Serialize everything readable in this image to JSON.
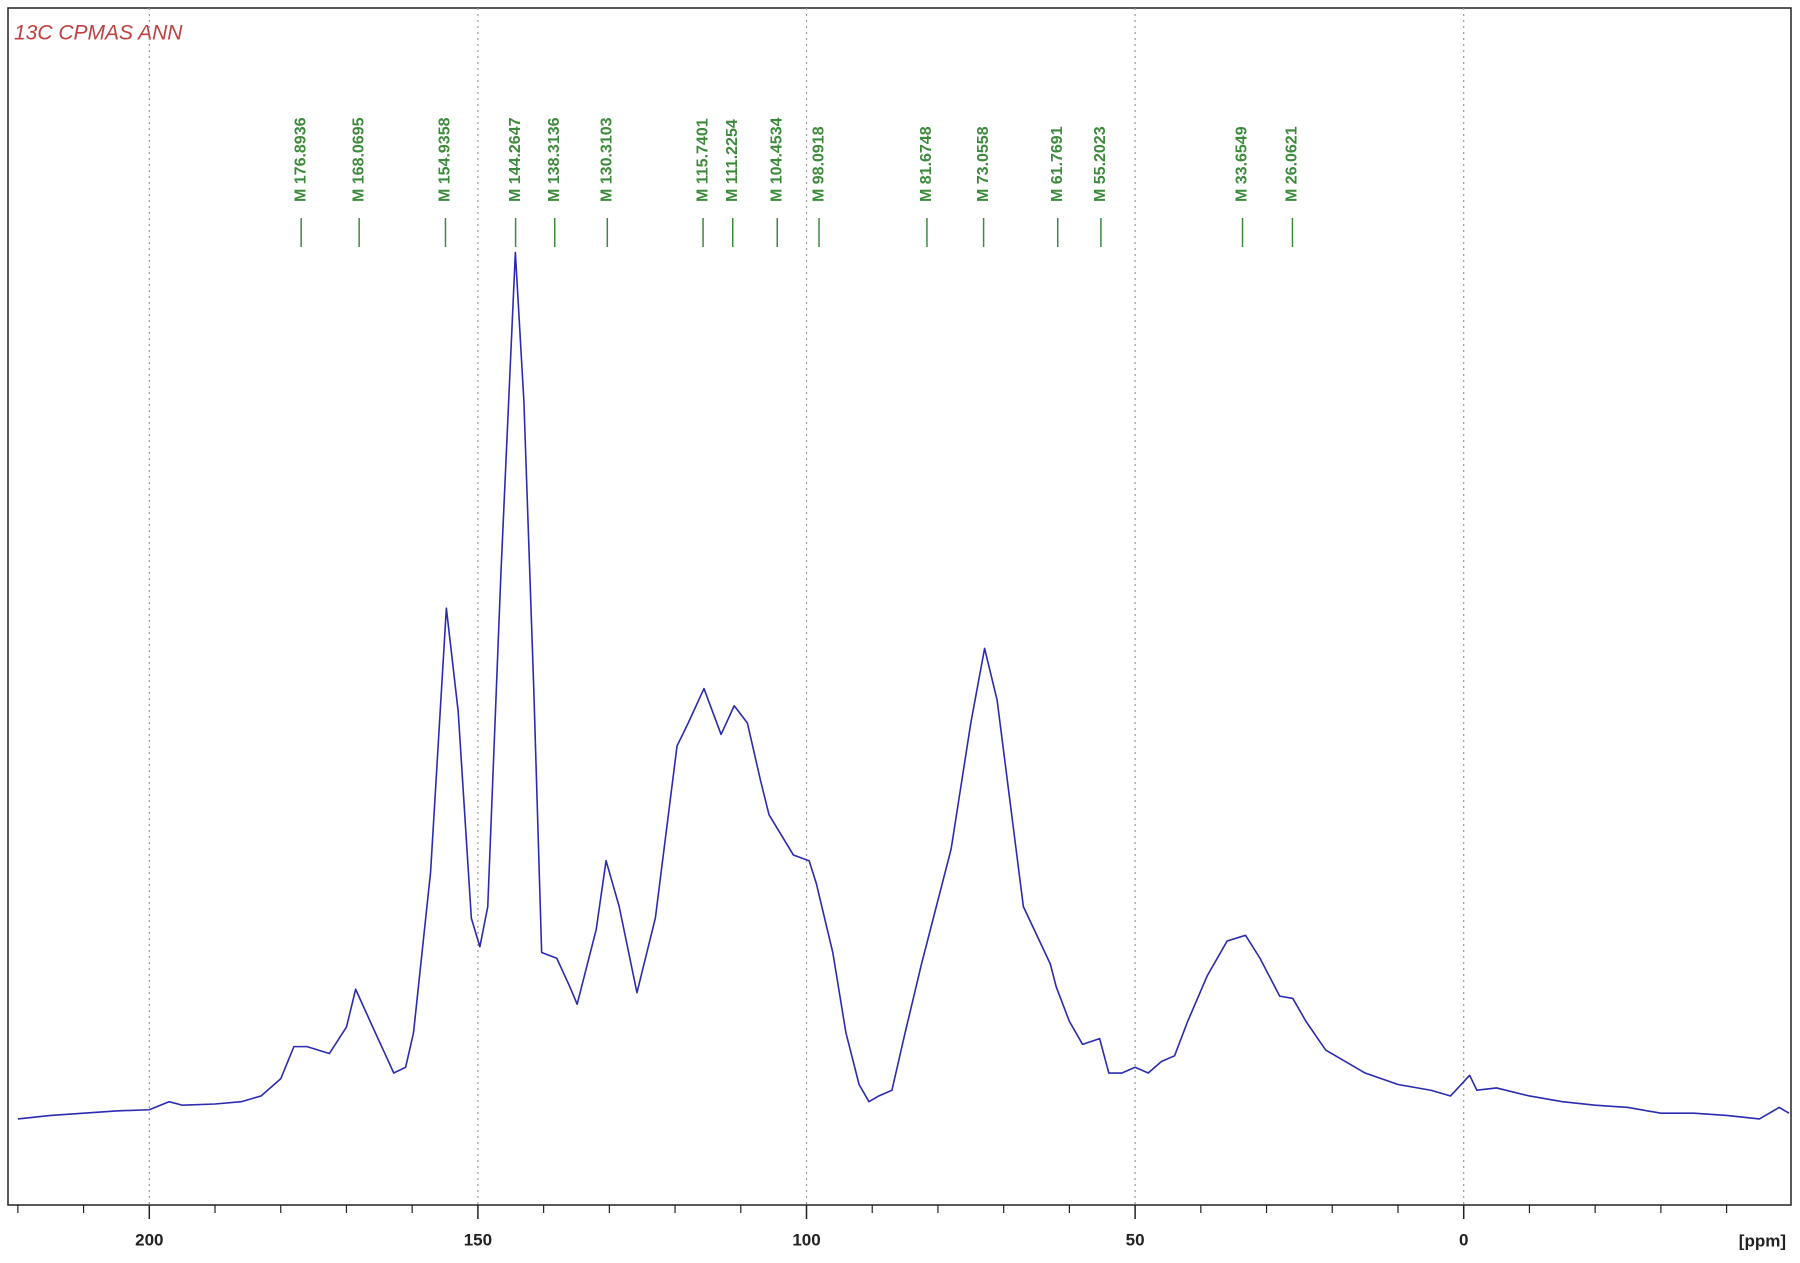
{
  "chart_data": {
    "type": "line",
    "title": "13C CPMAS ANN",
    "xlabel": "[ppm]",
    "color": "#2b2bb0",
    "xlim": [
      221.5,
      -49.8
    ],
    "xticks": [
      200,
      150,
      100,
      50,
      0
    ],
    "xminorticks": [
      220,
      210,
      190,
      180,
      170,
      160,
      140,
      130,
      120,
      110,
      90,
      80,
      70,
      60,
      40,
      30,
      20,
      10,
      -10,
      -20,
      -30,
      -40
    ],
    "grid": true,
    "ylim": [
      0,
      1043
    ],
    "x": [
      220,
      215,
      210,
      205,
      200,
      197,
      195,
      190,
      186,
      183,
      180,
      178,
      176,
      172.6,
      170,
      168.6,
      166,
      162.8,
      161,
      159.8,
      157.2,
      154.8,
      153,
      151,
      149.7,
      148.5,
      146.5,
      144.3,
      143,
      141.5,
      140.3,
      138,
      136,
      134.9,
      132,
      130.5,
      128.5,
      125.8,
      123,
      119.7,
      118,
      115.6,
      113,
      111,
      109,
      107,
      105.7,
      102,
      99.6,
      98.5,
      96,
      94,
      92,
      90.5,
      89,
      87,
      85,
      82.5,
      79.8,
      78,
      75,
      72.9,
      71,
      69,
      67,
      62.9,
      62,
      60,
      58,
      55.4,
      54,
      52,
      50,
      48,
      46,
      44,
      42,
      39,
      36,
      33.2,
      31,
      28,
      26,
      24,
      21,
      18,
      15,
      10,
      5,
      2,
      -0.9,
      -2,
      -5,
      -10,
      -15,
      -20,
      -25,
      -30,
      -35,
      -40,
      -45,
      -48,
      -49.5
    ],
    "values": [
      75,
      78,
      80,
      82,
      83,
      90,
      87,
      88,
      90,
      95,
      110,
      138,
      138,
      132,
      155,
      188,
      155,
      115,
      120,
      150,
      290,
      520,
      430,
      250,
      225,
      260,
      550,
      830,
      700,
      450,
      220,
      215,
      190,
      175,
      240,
      300,
      260,
      185,
      250,
      400,
      420,
      450,
      410,
      435,
      420,
      370,
      340,
      305,
      300,
      280,
      220,
      150,
      105,
      90,
      95,
      100,
      150,
      210,
      270,
      310,
      420,
      485,
      440,
      350,
      260,
      210,
      190,
      160,
      140,
      145,
      115,
      115,
      120,
      115,
      125,
      130,
      160,
      200,
      230,
      235,
      215,
      182,
      180,
      160,
      135,
      125,
      115,
      105,
      100,
      95,
      113,
      100,
      102,
      95,
      90,
      87,
      85,
      80,
      80,
      78,
      75,
      85,
      80
    ],
    "peak_markers": [
      {
        "value": 176.8936,
        "label": "M 176.8936"
      },
      {
        "value": 168.0695,
        "label": "M 168.0695"
      },
      {
        "value": 154.9358,
        "label": "M 154.9358"
      },
      {
        "value": 144.2647,
        "label": "M 144.2647"
      },
      {
        "value": 138.3136,
        "label": "M 138.3136"
      },
      {
        "value": 130.3103,
        "label": "M 130.3103"
      },
      {
        "value": 115.7401,
        "label": "M 115.7401"
      },
      {
        "value": 111.2254,
        "label": "M 111.2254"
      },
      {
        "value": 104.4534,
        "label": "M 104.4534"
      },
      {
        "value": 98.0918,
        "label": "M 98.0918"
      },
      {
        "value": 81.6748,
        "label": "M 81.6748"
      },
      {
        "value": 73.0558,
        "label": "M 73.0558"
      },
      {
        "value": 61.7691,
        "label": "M 61.7691"
      },
      {
        "value": 55.2023,
        "label": "M 55.2023"
      },
      {
        "value": 33.6549,
        "label": "M 33.6549"
      },
      {
        "value": 26.0621,
        "label": "M 26.0621"
      }
    ]
  }
}
